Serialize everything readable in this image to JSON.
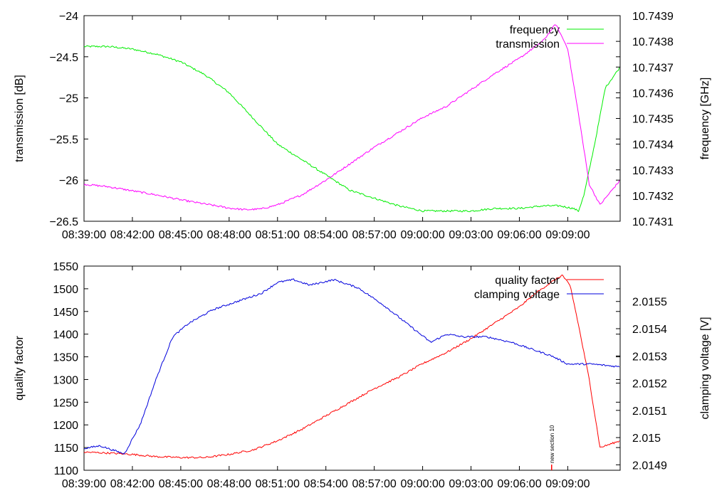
{
  "chart_data": [
    {
      "type": "line",
      "left_axis": {
        "label": "transmission [dB]",
        "ylim": [
          -26.5,
          -24
        ],
        "ticks": [
          -26.5,
          -26,
          -25.5,
          -25,
          -24.5,
          -24
        ],
        "tick_labels": [
          "-26.5",
          "-26",
          "-25.5",
          "-25",
          "-24.5",
          "-24"
        ]
      },
      "right_axis": {
        "label": "frequency [GHz]",
        "ylim": [
          10.7431,
          10.7439
        ],
        "ticks": [
          10.7431,
          10.7432,
          10.7433,
          10.7434,
          10.7435,
          10.7436,
          10.7437,
          10.7438,
          10.7439
        ],
        "tick_labels": [
          "10.7431",
          "10.7432",
          "10.7433",
          "10.7434",
          "10.7435",
          "10.7436",
          "10.7437",
          "10.7438",
          "10.7439"
        ]
      },
      "x_axis": {
        "xlim": [
          "08:39:00",
          "09:12:15"
        ],
        "tick_labels": [
          "08:39:00",
          "08:42:00",
          "08:45:00",
          "08:48:00",
          "08:51:00",
          "08:54:00",
          "08:57:00",
          "09:00:00",
          "09:03:00",
          "09:06:00",
          "09:09:00"
        ]
      },
      "legend_position": "top-right",
      "grid": false,
      "series": [
        {
          "name": "frequency",
          "axis": "right",
          "color": "#00ee00",
          "x": [
            "08:39:00",
            "08:40:30",
            "08:42:00",
            "08:43:30",
            "08:45:00",
            "08:46:30",
            "08:48:00",
            "08:49:30",
            "08:51:00",
            "08:52:30",
            "08:54:00",
            "08:55:30",
            "08:57:00",
            "08:58:30",
            "09:00:00",
            "09:01:30",
            "09:03:00",
            "09:04:30",
            "09:06:00",
            "09:07:30",
            "09:08:30",
            "09:09:20",
            "09:09:40",
            "09:10:00",
            "09:10:40",
            "09:11:20",
            "09:12:15"
          ],
          "y": [
            10.74378,
            10.74378,
            10.74377,
            10.74375,
            10.74372,
            10.74367,
            10.7436,
            10.7435,
            10.7434,
            10.74334,
            10.74328,
            10.74322,
            10.74319,
            10.74316,
            10.74314,
            10.74314,
            10.74314,
            10.74315,
            10.74315,
            10.74316,
            10.74316,
            10.74315,
            10.74314,
            10.7432,
            10.7434,
            10.74362,
            10.7437
          ]
        },
        {
          "name": "transmission",
          "axis": "left",
          "color": "#ff00ff",
          "x": [
            "08:39:00",
            "08:40:30",
            "08:42:00",
            "08:43:30",
            "08:45:00",
            "08:46:30",
            "08:48:00",
            "08:49:00",
            "08:50:00",
            "08:51:00",
            "08:52:30",
            "08:54:00",
            "08:55:30",
            "08:57:00",
            "08:58:30",
            "09:00:00",
            "09:01:30",
            "09:03:00",
            "09:04:30",
            "09:06:00",
            "09:07:30",
            "09:08:15",
            "09:09:00",
            "09:09:45",
            "09:10:20",
            "09:11:00",
            "09:12:15"
          ],
          "y": [
            -26.05,
            -26.08,
            -26.13,
            -26.18,
            -26.24,
            -26.29,
            -26.34,
            -26.36,
            -26.35,
            -26.3,
            -26.18,
            -26.0,
            -25.8,
            -25.6,
            -25.42,
            -25.24,
            -25.1,
            -24.9,
            -24.7,
            -24.52,
            -24.3,
            -24.1,
            -24.4,
            -25.3,
            -26.05,
            -26.3,
            -26.0
          ]
        }
      ]
    },
    {
      "type": "line",
      "left_axis": {
        "label": "quality factor",
        "ylim": [
          1100,
          1550
        ],
        "ticks": [
          1100,
          1150,
          1200,
          1250,
          1300,
          1350,
          1400,
          1450,
          1500,
          1550
        ],
        "tick_labels": [
          "1100",
          "1150",
          "1200",
          "1250",
          "1300",
          "1350",
          "1400",
          "1450",
          "1500",
          "1550"
        ]
      },
      "right_axis": {
        "label": "clamping voltage [V]",
        "ylim": [
          2.01488,
          2.01563
        ],
        "ticks": [
          2.0149,
          2.015,
          2.0151,
          2.0152,
          2.0153,
          2.0154,
          2.0155
        ],
        "tick_labels": [
          "2.0149",
          "2.015",
          "2.0151",
          "2.0152",
          "2.0153",
          "2.0154",
          "2.0155"
        ]
      },
      "x_axis": {
        "xlim": [
          "08:39:00",
          "09:12:15"
        ],
        "tick_labels": [
          "08:39:00",
          "08:42:00",
          "08:45:00",
          "08:48:00",
          "08:51:00",
          "08:54:00",
          "08:57:00",
          "09:00:00",
          "09:03:00",
          "09:06:00",
          "09:09:00"
        ]
      },
      "legend_position": "top-right",
      "grid": false,
      "annotations": [
        {
          "x": "09:08:00",
          "text": "new section 10"
        }
      ],
      "series": [
        {
          "name": "quality factor",
          "axis": "left",
          "color": "#ff0000",
          "x": [
            "08:39:00",
            "08:40:30",
            "08:42:00",
            "08:43:30",
            "08:45:00",
            "08:46:30",
            "08:48:00",
            "08:49:30",
            "08:51:00",
            "08:52:30",
            "08:54:00",
            "08:55:30",
            "08:57:00",
            "08:58:30",
            "09:00:00",
            "09:01:30",
            "09:03:00",
            "09:04:30",
            "09:06:00",
            "09:07:00",
            "09:08:00",
            "09:08:40",
            "09:09:10",
            "09:09:40",
            "09:10:20",
            "09:11:00",
            "09:12:15"
          ],
          "y": [
            1140,
            1138,
            1135,
            1130,
            1128,
            1128,
            1135,
            1145,
            1165,
            1190,
            1220,
            1250,
            1280,
            1305,
            1335,
            1360,
            1390,
            1425,
            1460,
            1490,
            1515,
            1530,
            1505,
            1420,
            1300,
            1150,
            1165
          ]
        },
        {
          "name": "clamping voltage",
          "axis": "right",
          "color": "#0000dd",
          "x": [
            "08:39:00",
            "08:40:00",
            "08:41:30",
            "08:42:30",
            "08:43:30",
            "08:44:30",
            "08:45:30",
            "08:47:00",
            "08:48:30",
            "08:50:00",
            "08:51:00",
            "08:52:00",
            "08:53:00",
            "08:54:30",
            "08:56:00",
            "08:57:30",
            "08:59:00",
            "09:00:30",
            "09:01:30",
            "09:02:30",
            "09:04:00",
            "09:05:30",
            "09:07:00",
            "09:08:00",
            "09:09:00",
            "09:10:30",
            "09:12:15"
          ],
          "y": [
            2.01496,
            2.01497,
            2.01494,
            2.01505,
            2.01522,
            2.01537,
            2.01542,
            2.01547,
            2.0155,
            2.01553,
            2.01557,
            2.01558,
            2.01556,
            2.01558,
            2.01555,
            2.01549,
            2.01542,
            2.01535,
            2.01538,
            2.01537,
            2.01537,
            2.01535,
            2.01532,
            2.0153,
            2.01527,
            2.01527,
            2.01526
          ]
        }
      ]
    }
  ]
}
